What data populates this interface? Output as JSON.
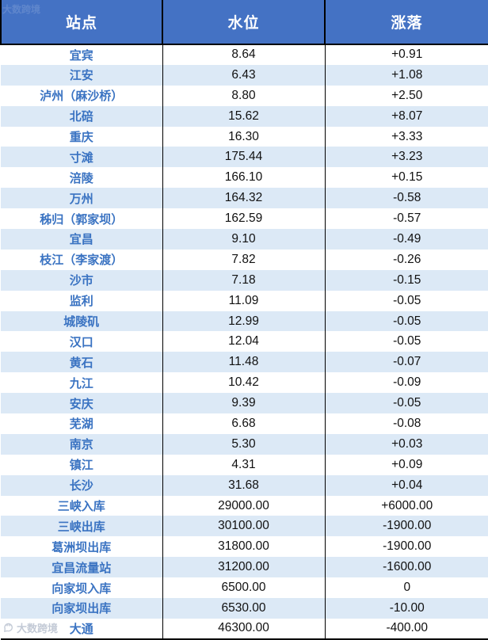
{
  "chart_data": {
    "type": "table",
    "columns": [
      "站点",
      "水位",
      "涨落"
    ],
    "rows": [
      [
        "宜宾",
        "8.64",
        "+0.91"
      ],
      [
        "江安",
        "6.43",
        "+1.08"
      ],
      [
        "泸州（麻沙桥）",
        "8.80",
        "+2.50"
      ],
      [
        "北碚",
        "15.62",
        "+8.07"
      ],
      [
        "重庆",
        "16.30",
        "+3.33"
      ],
      [
        "寸滩",
        "175.44",
        "+3.23"
      ],
      [
        "涪陵",
        "166.10",
        "+0.15"
      ],
      [
        "万州",
        "164.32",
        "-0.58"
      ],
      [
        "秭归（郭家坝）",
        "162.59",
        "-0.57"
      ],
      [
        "宜昌",
        "9.10",
        "-0.49"
      ],
      [
        "枝江（李家渡）",
        "7.82",
        "-0.26"
      ],
      [
        "沙市",
        "7.18",
        "-0.15"
      ],
      [
        "监利",
        "11.09",
        "-0.05"
      ],
      [
        "城陵矶",
        "12.99",
        "-0.05"
      ],
      [
        "汉口",
        "12.04",
        "-0.05"
      ],
      [
        "黄石",
        "11.48",
        "-0.07"
      ],
      [
        "九江",
        "10.42",
        "-0.09"
      ],
      [
        "安庆",
        "9.39",
        "-0.05"
      ],
      [
        "芜湖",
        "6.68",
        "-0.08"
      ],
      [
        "南京",
        "5.30",
        "+0.03"
      ],
      [
        "镇江",
        "4.31",
        "+0.09"
      ],
      [
        "长沙",
        "31.68",
        "+0.04"
      ],
      [
        "三峡入库",
        "29000.00",
        "+6000.00"
      ],
      [
        "三峡出库",
        "30100.00",
        "-1900.00"
      ],
      [
        "葛洲坝出库",
        "31800.00",
        "-1900.00"
      ],
      [
        "宜昌流量站",
        "31200.00",
        "-1600.00"
      ],
      [
        "向家坝入库",
        "6500.00",
        "0"
      ],
      [
        "向家坝出库",
        "6530.00",
        "-10.00"
      ],
      [
        "大通",
        "46300.00",
        "-400.00"
      ]
    ],
    "title": "",
    "layout": {
      "striped": true,
      "stripe_pattern": "even-rows-light-blue",
      "borders": "black-column-dividers"
    }
  },
  "watermark": {
    "text": "大数跨境"
  },
  "colors": {
    "header_bg": "#4472C4",
    "header_text": "#FFFFFF",
    "stripe": "#DCE9F6",
    "station_text": "#3A73C2",
    "value_text": "#111111",
    "border": "#000000",
    "watermark_text": "#C3CAD6"
  }
}
